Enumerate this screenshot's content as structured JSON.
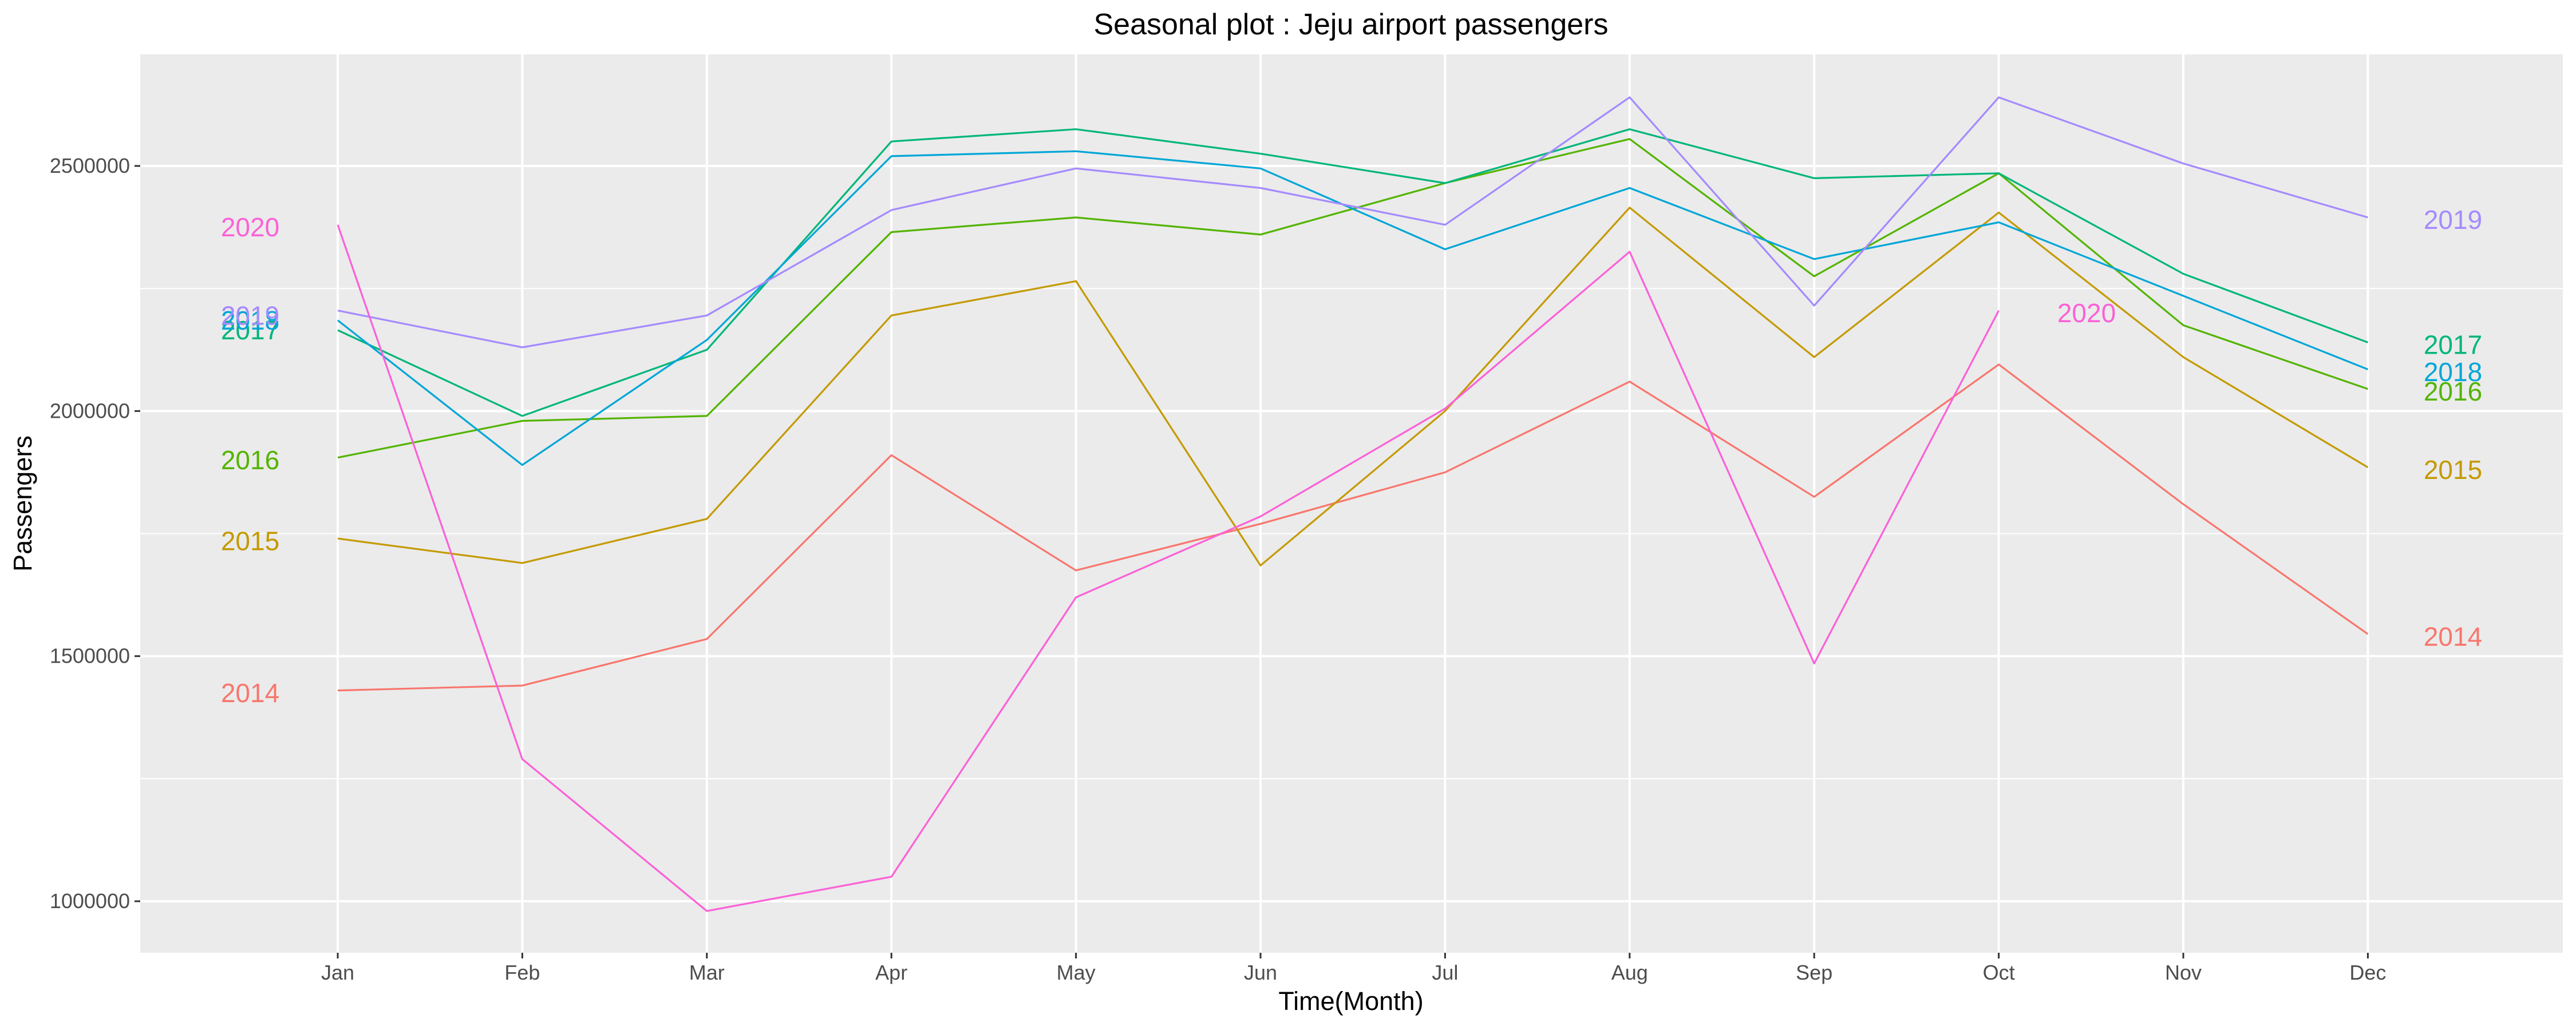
{
  "chart_data": {
    "type": "line",
    "title": "Seasonal plot : Jeju airport passengers",
    "xlabel": "Time(Month)",
    "ylabel": "Passengers",
    "categories": [
      "Jan",
      "Feb",
      "Mar",
      "Apr",
      "May",
      "Jun",
      "Jul",
      "Aug",
      "Sep",
      "Oct",
      "Nov",
      "Dec"
    ],
    "y_ticks": [
      1000000,
      1500000,
      2000000,
      2500000
    ],
    "y_tick_labels": [
      "1000000",
      "1500000",
      "2000000",
      "2500000"
    ],
    "ylim": [
      870000,
      2700000
    ],
    "grid": true,
    "series": [
      {
        "name": "2014",
        "color": "#F8766D",
        "values": [
          1430000,
          1440000,
          1535000,
          1910000,
          1675000,
          1770000,
          1875000,
          2060000,
          1825000,
          2095000,
          1810000,
          1545000
        ]
      },
      {
        "name": "2015",
        "color": "#C49A00",
        "values": [
          1740000,
          1690000,
          1780000,
          2195000,
          2265000,
          1685000,
          2000000,
          2415000,
          2110000,
          2405000,
          2110000,
          1885000
        ]
      },
      {
        "name": "2016",
        "color": "#53B400",
        "values": [
          1905000,
          1980000,
          1990000,
          2365000,
          2395000,
          2360000,
          2465000,
          2555000,
          2275000,
          2485000,
          2175000,
          2045000
        ]
      },
      {
        "name": "2017",
        "color": "#00B67A",
        "values": [
          2165000,
          1990000,
          2125000,
          2550000,
          2575000,
          2525000,
          2465000,
          2575000,
          2475000,
          2485000,
          2280000,
          2140000
        ]
      },
      {
        "name": "2018",
        "color": "#00A6D7",
        "values": [
          2185000,
          1890000,
          2145000,
          2520000,
          2530000,
          2495000,
          2330000,
          2455000,
          2310000,
          2385000,
          2235000,
          2085000
        ]
      },
      {
        "name": "2019",
        "color": "#A58AFF",
        "values": [
          2205000,
          2130000,
          2195000,
          2410000,
          2495000,
          2455000,
          2380000,
          2640000,
          2215000,
          2640000,
          2505000,
          2395000
        ]
      },
      {
        "name": "2020",
        "color": "#FB61D7",
        "values": [
          2380000,
          1290000,
          980000,
          1050000,
          1620000,
          1785000,
          2005000,
          2325000,
          1485000,
          2205000,
          null,
          null
        ]
      }
    ],
    "label_left_values": {
      "2014": 1425000,
      "2015": 1735000,
      "2016": 1900000,
      "2017": 2165000,
      "2018": 2185000,
      "2019": 2195000,
      "2020": 2375000
    },
    "label_right_values": {
      "2014": 1540000,
      "2015": 1880000,
      "2016": 2040000,
      "2017": 2135000,
      "2018": 2080000,
      "2019": 2390000,
      "2020": 2200000
    }
  }
}
